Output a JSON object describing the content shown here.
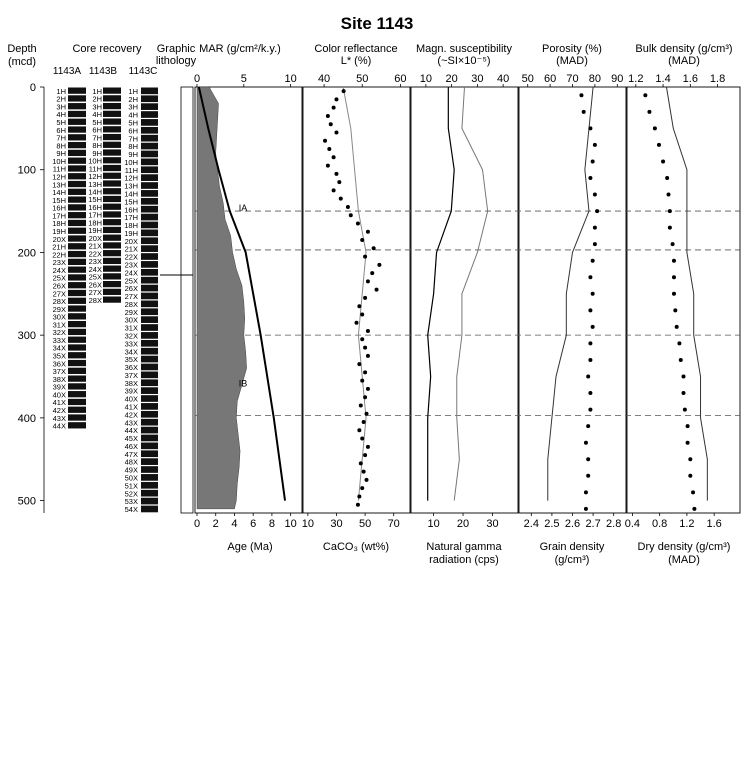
{
  "title": "Site  1143",
  "depth": {
    "label": "Depth",
    "unit": "(mcd)",
    "ticks": [
      "0",
      "100",
      "200",
      "300",
      "400",
      "500"
    ]
  },
  "core_recovery": {
    "label": "Core recovery",
    "holes": [
      {
        "name": "1143A",
        "cores": [
          "1H",
          "2H",
          "3H",
          "4H",
          "5H",
          "6H",
          "7H",
          "8H",
          "9H",
          "10H",
          "11H",
          "12H",
          "13H",
          "14H",
          "15H",
          "16H",
          "17H",
          "18H",
          "19H",
          "20X",
          "21H",
          "22H",
          "23X",
          "24X",
          "25X",
          "26X",
          "27X",
          "28X",
          "29X",
          "30X",
          "31X",
          "32X",
          "33X",
          "34X",
          "35X",
          "36X",
          "37X",
          "38X",
          "39X",
          "40X",
          "41X",
          "42X",
          "43X",
          "44X"
        ],
        "depth_range": [
          0,
          414
        ]
      },
      {
        "name": "1143B",
        "cores": [
          "1H",
          "2H",
          "3H",
          "4H",
          "5H",
          "6H",
          "7H",
          "8H",
          "9H",
          "10H",
          "11H",
          "12H",
          "13H",
          "14H",
          "15H",
          "16H",
          "17H",
          "18H",
          "19H",
          "20X",
          "21X",
          "22X",
          "23X",
          "24X",
          "25X",
          "26X",
          "27X",
          "28X"
        ],
        "depth_range": [
          0,
          262
        ]
      },
      {
        "name": "1143C",
        "cores": [
          "1H",
          "2H",
          "3H",
          "4H",
          "5H",
          "6H",
          "7H",
          "8H",
          "9H",
          "10H",
          "11H",
          "12H",
          "13H",
          "14H",
          "15H",
          "16H",
          "17H",
          "18H",
          "19H",
          "20X",
          "21X",
          "22X",
          "23X",
          "24X",
          "25X",
          "26X",
          "27X",
          "28X",
          "29X",
          "30X",
          "31X",
          "32X",
          "33X",
          "34X",
          "35X",
          "36X",
          "37X",
          "38X",
          "39X",
          "40X",
          "41X",
          "42X",
          "43X",
          "44X",
          "45X",
          "46X",
          "47X",
          "48X",
          "49X",
          "50X",
          "51X",
          "52X",
          "53X",
          "54X"
        ],
        "depth_range": [
          0,
          515
        ]
      }
    ]
  },
  "graphic_lithology": {
    "label_line1": "Graphic",
    "label_line2": "lithology",
    "units": [
      "IA",
      "IB"
    ]
  },
  "chart_data": [
    {
      "type": "area",
      "name": "mar_age",
      "top_label": "MAR (g/cm²/k.y.)",
      "top_ticks": [
        "0",
        "5",
        "10"
      ],
      "bottom_label": "Age (Ma)",
      "bottom_ticks": [
        "0",
        "2",
        "4",
        "6",
        "8",
        "10"
      ],
      "age_depth": {
        "depth": [
          0,
          50,
          100,
          150,
          200,
          250,
          300,
          350,
          400,
          450,
          500
        ],
        "age": [
          0.2,
          1.2,
          2.3,
          3.5,
          5.2,
          6.0,
          6.8,
          7.5,
          8.2,
          8.8,
          9.4
        ]
      },
      "mar": {
        "depth": [
          0,
          20,
          40,
          60,
          80,
          100,
          120,
          140,
          160,
          180,
          200,
          220,
          240,
          260,
          280,
          300,
          320,
          340,
          360,
          380,
          400,
          420,
          440,
          460,
          480,
          500,
          510
        ],
        "value": [
          1.3,
          2.3,
          2.2,
          2.1,
          2.0,
          2.2,
          2.4,
          2.8,
          3.0,
          3.6,
          3.8,
          4.2,
          4.8,
          5.0,
          5.1,
          5.0,
          5.2,
          5.3,
          4.8,
          4.3,
          4.2,
          4.4,
          4.6,
          4.5,
          4.3,
          4.2,
          4.0
        ]
      }
    },
    {
      "type": "scatter",
      "name": "color_caco3",
      "top_label": "Color reflectance",
      "top_sublabel": "L* (%)",
      "top_ticks": [
        "40",
        "50",
        "60"
      ],
      "bottom_label": "CaCO₃ (wt%)",
      "bottom_ticks": [
        "10",
        "30",
        "50",
        "70"
      ],
      "points": {
        "depth": [
          5,
          15,
          25,
          35,
          45,
          55,
          65,
          75,
          85,
          95,
          105,
          115,
          125,
          135,
          145,
          155,
          165,
          175,
          185,
          195,
          205,
          215,
          225,
          235,
          245,
          255,
          265,
          275,
          285,
          295,
          305,
          315,
          325,
          335,
          345,
          355,
          365,
          375,
          385,
          395,
          405,
          415,
          425,
          435,
          445,
          455,
          465,
          475,
          485,
          495,
          505
        ],
        "caco3": [
          35,
          30,
          28,
          24,
          26,
          30,
          22,
          25,
          28,
          24,
          30,
          32,
          28,
          33,
          38,
          40,
          45,
          52,
          48,
          56,
          50,
          60,
          55,
          52,
          58,
          50,
          46,
          48,
          44,
          52,
          48,
          50,
          52,
          46,
          50,
          48,
          52,
          50,
          47,
          51,
          49,
          46,
          48,
          52,
          50,
          47,
          49,
          51,
          48,
          46,
          45
        ]
      },
      "line": {
        "depth": [
          0,
          50,
          100,
          150,
          200,
          250,
          300,
          350,
          400,
          450,
          500
        ],
        "lstar": [
          45,
          47,
          48,
          49,
          51,
          50,
          49,
          50,
          51,
          50,
          49
        ]
      }
    },
    {
      "type": "line",
      "name": "susceptibility_ngr",
      "top_label": "Magn. susceptibility",
      "top_sublabel": "(~SI×10⁻⁵)",
      "top_ticks": [
        "10",
        "20",
        "30",
        "40"
      ],
      "bottom_label_line1": "Natural gamma",
      "bottom_label_line2": "radiation (cps)",
      "bottom_ticks": [
        "10",
        "20",
        "30"
      ],
      "ms": {
        "depth": [
          0,
          50,
          100,
          150,
          200,
          250,
          300,
          350,
          400,
          450,
          500
        ],
        "value": [
          25,
          24,
          32,
          34,
          30,
          24,
          24,
          22,
          22,
          23,
          21
        ]
      },
      "ngr": {
        "depth": [
          0,
          50,
          100,
          150,
          200,
          250,
          300,
          350,
          400,
          450,
          500
        ],
        "value": [
          15,
          15,
          17,
          16,
          11,
          10,
          8,
          9,
          8,
          8,
          8
        ]
      }
    },
    {
      "type": "scatter",
      "name": "porosity_grain",
      "top_label": "Porosity (%)",
      "top_sublabel": "(MAD)",
      "top_ticks": [
        "50",
        "60",
        "70",
        "80",
        "90"
      ],
      "bottom_label_line1": "Grain density",
      "bottom_label_line2": "(g/cm³)",
      "bottom_ticks": [
        "2.4",
        "2.5",
        "2.6",
        "2.7",
        "2.8"
      ],
      "porosity": {
        "depth": [
          10,
          30,
          50,
          70,
          90,
          110,
          130,
          150,
          170,
          190,
          210,
          230,
          250,
          270,
          290,
          310,
          330,
          350,
          370,
          390,
          410,
          430,
          450,
          470,
          490,
          510
        ],
        "value": [
          74,
          75,
          78,
          80,
          79,
          78,
          80,
          81,
          80,
          80,
          79,
          78,
          79,
          78,
          79,
          78,
          78,
          77,
          78,
          78,
          77,
          76,
          77,
          77,
          76,
          76
        ]
      },
      "grain": {
        "depth": [
          0,
          50,
          100,
          150,
          200,
          250,
          300,
          350,
          400,
          450,
          500
        ],
        "value": [
          2.7,
          2.68,
          2.66,
          2.68,
          2.6,
          2.57,
          2.57,
          2.52,
          2.5,
          2.48,
          2.48
        ]
      }
    },
    {
      "type": "scatter",
      "name": "bulk_dry_density",
      "top_label": "Bulk density (g/cm³)",
      "top_sublabel": "(MAD)",
      "top_ticks": [
        "1.2",
        "1.4",
        "1.6",
        "1.8"
      ],
      "bottom_label": "Dry density (g/cm³)",
      "bottom_sublabel": "(MAD)",
      "bottom_ticks": [
        "0.4",
        "0.8",
        "1.2",
        "1.6"
      ],
      "bulk": {
        "depth": [
          10,
          30,
          50,
          70,
          90,
          110,
          130,
          150,
          170,
          190,
          210,
          230,
          250,
          270,
          290,
          310,
          330,
          350,
          370,
          390,
          410,
          430,
          450,
          470,
          490,
          510
        ],
        "value": [
          1.27,
          1.3,
          1.34,
          1.37,
          1.4,
          1.43,
          1.44,
          1.45,
          1.45,
          1.47,
          1.48,
          1.48,
          1.48,
          1.49,
          1.5,
          1.52,
          1.53,
          1.55,
          1.55,
          1.56,
          1.58,
          1.58,
          1.6,
          1.6,
          1.62,
          1.63
        ]
      },
      "dry": {
        "depth": [
          0,
          50,
          100,
          150,
          200,
          250,
          300,
          350,
          400,
          450,
          500
        ],
        "value": [
          0.9,
          1.0,
          1.2,
          1.2,
          1.2,
          1.3,
          1.3,
          1.4,
          1.4,
          1.5,
          1.5
        ]
      }
    }
  ],
  "boundaries_mcd": [
    150,
    197,
    300,
    397
  ]
}
